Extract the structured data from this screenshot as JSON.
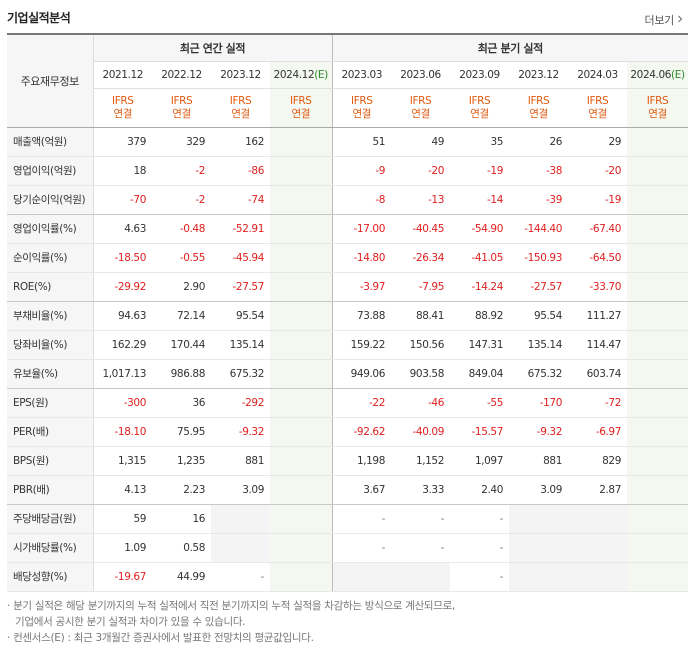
{
  "section_title": "기업실적분석",
  "more_label": "더보기",
  "label_header": "주요재무정보",
  "group_annual": "최근 연간 실적",
  "group_quarter": "최근 분기 실적",
  "periods": [
    "2021.12",
    "2022.12",
    "2023.12",
    "2024.12",
    "2023.03",
    "2023.06",
    "2023.09",
    "2023.12",
    "2024.03",
    "2024.06"
  ],
  "period_est_marker": "(E)",
  "estimate_flags": [
    false,
    false,
    false,
    true,
    false,
    false,
    false,
    false,
    false,
    true
  ],
  "standard": "IFRS",
  "basis": "연결",
  "rows": [
    {
      "label": "매출액(억원)",
      "values": [
        "379",
        "329",
        "162",
        "",
        "51",
        "49",
        "35",
        "26",
        "29",
        ""
      ]
    },
    {
      "label": "영업이익(억원)",
      "values": [
        "18",
        "-2",
        "-86",
        "",
        "-9",
        "-20",
        "-19",
        "-38",
        "-20",
        ""
      ]
    },
    {
      "label": "당기순이익(억원)",
      "values": [
        "-70",
        "-2",
        "-74",
        "",
        "-8",
        "-13",
        "-14",
        "-39",
        "-19",
        ""
      ],
      "group_end": true
    },
    {
      "label": "영업이익률(%)",
      "values": [
        "4.63",
        "-0.48",
        "-52.91",
        "",
        "-17.00",
        "-40.45",
        "-54.90",
        "-144.40",
        "-67.40",
        ""
      ]
    },
    {
      "label": "순이익률(%)",
      "values": [
        "-18.50",
        "-0.55",
        "-45.94",
        "",
        "-14.80",
        "-26.34",
        "-41.05",
        "-150.93",
        "-64.50",
        ""
      ]
    },
    {
      "label": "ROE(%)",
      "values": [
        "-29.92",
        "2.90",
        "-27.57",
        "",
        "-3.97",
        "-7.95",
        "-14.24",
        "-27.57",
        "-33.70",
        ""
      ],
      "group_end": true
    },
    {
      "label": "부채비율(%)",
      "values": [
        "94.63",
        "72.14",
        "95.54",
        "",
        "73.88",
        "88.41",
        "88.92",
        "95.54",
        "111.27",
        ""
      ]
    },
    {
      "label": "당좌비율(%)",
      "values": [
        "162.29",
        "170.44",
        "135.14",
        "",
        "159.22",
        "150.56",
        "147.31",
        "135.14",
        "114.47",
        ""
      ]
    },
    {
      "label": "유보율(%)",
      "values": [
        "1,017.13",
        "986.88",
        "675.32",
        "",
        "949.06",
        "903.58",
        "849.04",
        "675.32",
        "603.74",
        ""
      ],
      "group_end": true
    },
    {
      "label": "EPS(원)",
      "values": [
        "-300",
        "36",
        "-292",
        "",
        "-22",
        "-46",
        "-55",
        "-170",
        "-72",
        ""
      ]
    },
    {
      "label": "PER(배)",
      "values": [
        "-18.10",
        "75.95",
        "-9.32",
        "",
        "-92.62",
        "-40.09",
        "-15.57",
        "-9.32",
        "-6.97",
        ""
      ]
    },
    {
      "label": "BPS(원)",
      "values": [
        "1,315",
        "1,235",
        "881",
        "",
        "1,198",
        "1,152",
        "1,097",
        "881",
        "829",
        ""
      ]
    },
    {
      "label": "PBR(배)",
      "values": [
        "4.13",
        "2.23",
        "3.09",
        "",
        "3.67",
        "3.33",
        "2.40",
        "3.09",
        "2.87",
        ""
      ],
      "group_end": true
    },
    {
      "label": "주당배당금(원)",
      "values": [
        "59",
        "16",
        "",
        "",
        "-",
        "-",
        "-",
        "",
        "",
        ""
      ]
    },
    {
      "label": "시가배당률(%)",
      "values": [
        "1.09",
        "0.58",
        "",
        "",
        "-",
        "-",
        "-",
        "",
        "",
        ""
      ]
    },
    {
      "label": "배당성향(%)",
      "values": [
        "-19.67",
        "44.99",
        "-",
        "",
        "",
        "",
        "-",
        "",
        "",
        ""
      ]
    }
  ],
  "notes": [
    "· 분기 실적은 해당 분기까지의 누적 실적에서 직전 분기까지의 누적 실적을 차감하는 방식으로 계산되므로,",
    "기업에서 공시한 분기 실적과 차이가 있을 수 있습니다.",
    "· 컨센서스(E) : 최근 3개월간 증권사에서 발표한 전망치의 평균값입니다."
  ]
}
